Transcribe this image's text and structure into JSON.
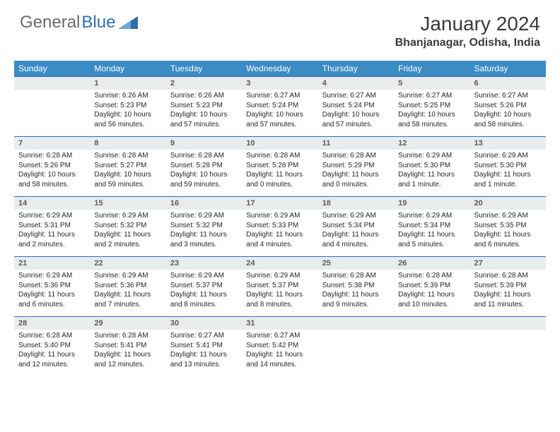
{
  "brand": {
    "part1": "General",
    "part2": "Blue"
  },
  "title": "January 2024",
  "location": "Bhanjanagar, Odisha, India",
  "colors": {
    "header_bg": "#3b8bc5",
    "header_text": "#ffffff",
    "numrow_bg": "#e9eced",
    "row_border": "#2f6fb0",
    "body_text": "#262626",
    "brand_gray": "#6a6a6a",
    "brand_blue": "#2f6fb0"
  },
  "day_headers": [
    "Sunday",
    "Monday",
    "Tuesday",
    "Wednesday",
    "Thursday",
    "Friday",
    "Saturday"
  ],
  "weeks": [
    {
      "nums": [
        "",
        "1",
        "2",
        "3",
        "4",
        "5",
        "6"
      ],
      "cells": [
        {
          "sunrise": "",
          "sunset": "",
          "daylight": ""
        },
        {
          "sunrise": "Sunrise: 6:26 AM",
          "sunset": "Sunset: 5:23 PM",
          "daylight": "Daylight: 10 hours and 56 minutes."
        },
        {
          "sunrise": "Sunrise: 6:26 AM",
          "sunset": "Sunset: 5:23 PM",
          "daylight": "Daylight: 10 hours and 57 minutes."
        },
        {
          "sunrise": "Sunrise: 6:27 AM",
          "sunset": "Sunset: 5:24 PM",
          "daylight": "Daylight: 10 hours and 57 minutes."
        },
        {
          "sunrise": "Sunrise: 6:27 AM",
          "sunset": "Sunset: 5:24 PM",
          "daylight": "Daylight: 10 hours and 57 minutes."
        },
        {
          "sunrise": "Sunrise: 6:27 AM",
          "sunset": "Sunset: 5:25 PM",
          "daylight": "Daylight: 10 hours and 58 minutes."
        },
        {
          "sunrise": "Sunrise: 6:27 AM",
          "sunset": "Sunset: 5:26 PM",
          "daylight": "Daylight: 10 hours and 58 minutes."
        }
      ]
    },
    {
      "nums": [
        "7",
        "8",
        "9",
        "10",
        "11",
        "12",
        "13"
      ],
      "cells": [
        {
          "sunrise": "Sunrise: 6:28 AM",
          "sunset": "Sunset: 5:26 PM",
          "daylight": "Daylight: 10 hours and 58 minutes."
        },
        {
          "sunrise": "Sunrise: 6:28 AM",
          "sunset": "Sunset: 5:27 PM",
          "daylight": "Daylight: 10 hours and 59 minutes."
        },
        {
          "sunrise": "Sunrise: 6:28 AM",
          "sunset": "Sunset: 5:28 PM",
          "daylight": "Daylight: 10 hours and 59 minutes."
        },
        {
          "sunrise": "Sunrise: 6:28 AM",
          "sunset": "Sunset: 5:28 PM",
          "daylight": "Daylight: 11 hours and 0 minutes."
        },
        {
          "sunrise": "Sunrise: 6:28 AM",
          "sunset": "Sunset: 5:29 PM",
          "daylight": "Daylight: 11 hours and 0 minutes."
        },
        {
          "sunrise": "Sunrise: 6:29 AM",
          "sunset": "Sunset: 5:30 PM",
          "daylight": "Daylight: 11 hours and 1 minute."
        },
        {
          "sunrise": "Sunrise: 6:29 AM",
          "sunset": "Sunset: 5:30 PM",
          "daylight": "Daylight: 11 hours and 1 minute."
        }
      ]
    },
    {
      "nums": [
        "14",
        "15",
        "16",
        "17",
        "18",
        "19",
        "20"
      ],
      "cells": [
        {
          "sunrise": "Sunrise: 6:29 AM",
          "sunset": "Sunset: 5:31 PM",
          "daylight": "Daylight: 11 hours and 2 minutes."
        },
        {
          "sunrise": "Sunrise: 6:29 AM",
          "sunset": "Sunset: 5:32 PM",
          "daylight": "Daylight: 11 hours and 2 minutes."
        },
        {
          "sunrise": "Sunrise: 6:29 AM",
          "sunset": "Sunset: 5:32 PM",
          "daylight": "Daylight: 11 hours and 3 minutes."
        },
        {
          "sunrise": "Sunrise: 6:29 AM",
          "sunset": "Sunset: 5:33 PM",
          "daylight": "Daylight: 11 hours and 4 minutes."
        },
        {
          "sunrise": "Sunrise: 6:29 AM",
          "sunset": "Sunset: 5:34 PM",
          "daylight": "Daylight: 11 hours and 4 minutes."
        },
        {
          "sunrise": "Sunrise: 6:29 AM",
          "sunset": "Sunset: 5:34 PM",
          "daylight": "Daylight: 11 hours and 5 minutes."
        },
        {
          "sunrise": "Sunrise: 6:29 AM",
          "sunset": "Sunset: 5:35 PM",
          "daylight": "Daylight: 11 hours and 6 minutes."
        }
      ]
    },
    {
      "nums": [
        "21",
        "22",
        "23",
        "24",
        "25",
        "26",
        "27"
      ],
      "cells": [
        {
          "sunrise": "Sunrise: 6:29 AM",
          "sunset": "Sunset: 5:36 PM",
          "daylight": "Daylight: 11 hours and 6 minutes."
        },
        {
          "sunrise": "Sunrise: 6:29 AM",
          "sunset": "Sunset: 5:36 PM",
          "daylight": "Daylight: 11 hours and 7 minutes."
        },
        {
          "sunrise": "Sunrise: 6:29 AM",
          "sunset": "Sunset: 5:37 PM",
          "daylight": "Daylight: 11 hours and 8 minutes."
        },
        {
          "sunrise": "Sunrise: 6:29 AM",
          "sunset": "Sunset: 5:37 PM",
          "daylight": "Daylight: 11 hours and 8 minutes."
        },
        {
          "sunrise": "Sunrise: 6:28 AM",
          "sunset": "Sunset: 5:38 PM",
          "daylight": "Daylight: 11 hours and 9 minutes."
        },
        {
          "sunrise": "Sunrise: 6:28 AM",
          "sunset": "Sunset: 5:39 PM",
          "daylight": "Daylight: 11 hours and 10 minutes."
        },
        {
          "sunrise": "Sunrise: 6:28 AM",
          "sunset": "Sunset: 5:39 PM",
          "daylight": "Daylight: 11 hours and 11 minutes."
        }
      ]
    },
    {
      "nums": [
        "28",
        "29",
        "30",
        "31",
        "",
        "",
        ""
      ],
      "cells": [
        {
          "sunrise": "Sunrise: 6:28 AM",
          "sunset": "Sunset: 5:40 PM",
          "daylight": "Daylight: 11 hours and 12 minutes."
        },
        {
          "sunrise": "Sunrise: 6:28 AM",
          "sunset": "Sunset: 5:41 PM",
          "daylight": "Daylight: 11 hours and 12 minutes."
        },
        {
          "sunrise": "Sunrise: 6:27 AM",
          "sunset": "Sunset: 5:41 PM",
          "daylight": "Daylight: 11 hours and 13 minutes."
        },
        {
          "sunrise": "Sunrise: 6:27 AM",
          "sunset": "Sunset: 5:42 PM",
          "daylight": "Daylight: 11 hours and 14 minutes."
        },
        {
          "sunrise": "",
          "sunset": "",
          "daylight": ""
        },
        {
          "sunrise": "",
          "sunset": "",
          "daylight": ""
        },
        {
          "sunrise": "",
          "sunset": "",
          "daylight": ""
        }
      ]
    }
  ]
}
